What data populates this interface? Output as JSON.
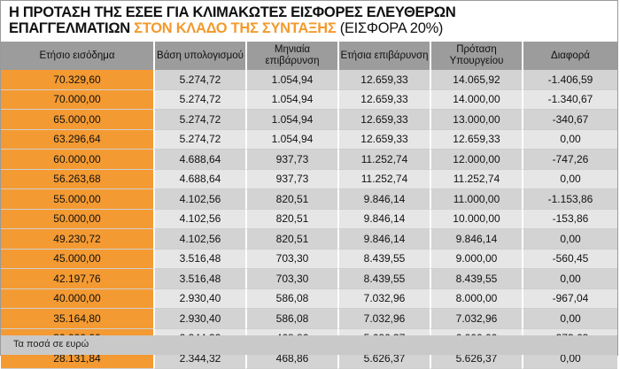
{
  "title": {
    "line1": "Η ΠΡΟΤΑΣΗ ΤΗΣ ΕΣΕΕ ΓΙΑ ΚΛΙΜΑΚΩΤΕΣ ΕΙΣΦΟΡΕΣ ΕΛΕΥΘΕΡΩΝ",
    "line2_a": "ΕΠΑΓΓΕΛΜΑΤΙΩΝ ",
    "line2_highlight": "ΣΤΟΝ ΚΛΑΔΟ ΤΗΣ ΣΥΝΤΑΞΗΣ",
    "line2_b": " (ΕΙΣΦΟΡΑ 20%)",
    "highlight_color": "#f39a2d"
  },
  "table": {
    "headers": [
      "Ετήσιο εισόδημα",
      "Βάση υπολογισμού",
      "Μηνιαία επιβάρυνση",
      "Ετήσια επιβάρυνση",
      "Πρόταση Υπουργείου",
      "Διαφορά"
    ],
    "rows": [
      [
        "70.329,60",
        "5.274,72",
        "1.054,94",
        "12.659,33",
        "14.065,92",
        "-1.406,59"
      ],
      [
        "70.000,00",
        "5.274,72",
        "1.054,94",
        "12.659,33",
        "14.000,00",
        "-1.340,67"
      ],
      [
        "65.000,00",
        "5.274,72",
        "1.054,94",
        "12.659,33",
        "13.000,00",
        "-340,67"
      ],
      [
        "63.296,64",
        "5.274,72",
        "1.054,94",
        "12.659,33",
        "12.659,33",
        "0,00"
      ],
      [
        "60.000,00",
        "4.688,64",
        "937,73",
        "11.252,74",
        "12.000,00",
        "-747,26"
      ],
      [
        "56.263,68",
        "4.688,64",
        "937,73",
        "11.252,74",
        "11.252,74",
        "0,00"
      ],
      [
        "55.000,00",
        "4.102,56",
        "820,51",
        "9.846,14",
        "11.000,00",
        "-1.153,86"
      ],
      [
        "50.000,00",
        "4.102,56",
        "820,51",
        "9.846,14",
        "10.000,00",
        "-153,86"
      ],
      [
        "49.230,72",
        "4.102,56",
        "820,51",
        "9.846,14",
        "9.846,14",
        "0,00"
      ],
      [
        "45.000,00",
        "3.516,48",
        "703,30",
        "8.439,55",
        "9.000,00",
        "-560,45"
      ],
      [
        "42.197,76",
        "3.516,48",
        "703,30",
        "8.439,55",
        "8.439,55",
        "0,00"
      ],
      [
        "40.000,00",
        "2.930,40",
        "586,08",
        "7.032,96",
        "8.000,00",
        "-967,04"
      ],
      [
        "35.164,80",
        "2.930,40",
        "586,08",
        "7.032,96",
        "7.032,96",
        "0,00"
      ],
      [
        "30.000,00",
        "2.344,32",
        "468,86",
        "5.626,37",
        "6.000,00",
        "-373,63"
      ],
      [
        "28.131,84",
        "2.344,32",
        "468,86",
        "5.626,37",
        "5.626,37",
        "0,00"
      ]
    ]
  },
  "footer": {
    "note": "Τα ποσά σε ευρώ"
  },
  "colors": {
    "accent": "#f49a32",
    "header_bg": "#9c9c9c",
    "row_light": "#e6e6e6",
    "row_dark": "#d3d3d3"
  }
}
